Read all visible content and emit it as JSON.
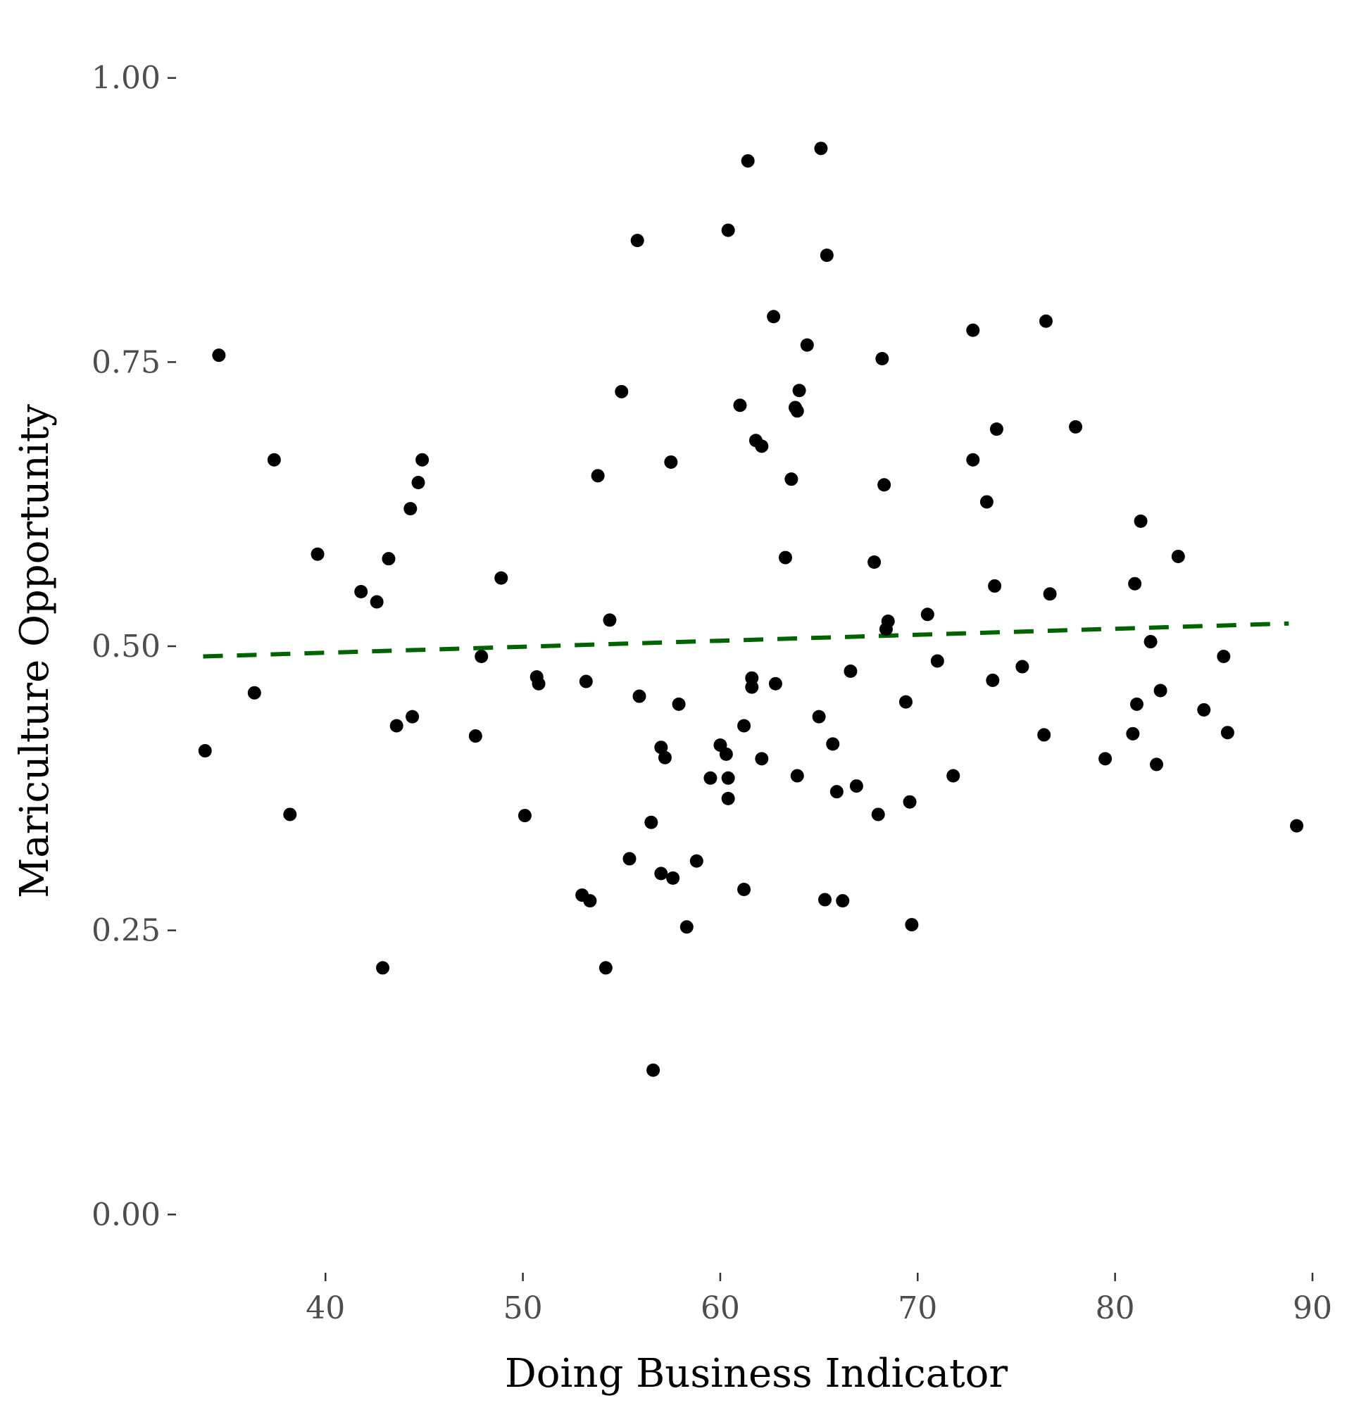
{
  "chart_data": {
    "type": "scatter",
    "title": "",
    "xlabel": "Doing Business Indicator",
    "ylabel": "Mariculture Opportunity",
    "xlim": [
      32.5,
      91.0
    ],
    "ylim": [
      -0.05,
      1.05
    ],
    "x_ticks": [
      40,
      50,
      60,
      70,
      80,
      90
    ],
    "x_tick_labels": [
      "40",
      "50",
      "60",
      "70",
      "80",
      "90"
    ],
    "y_ticks": [
      0.0,
      0.25,
      0.5,
      0.75,
      1.0
    ],
    "y_tick_labels": [
      "0.00",
      "0.25",
      "0.50",
      "0.75",
      "1.00"
    ],
    "grid": false,
    "point_color": "#000000",
    "trend_color": "#006400",
    "series": [
      {
        "type": "scatter",
        "points": [
          [
            33.9,
            0.408
          ],
          [
            34.6,
            0.756
          ],
          [
            36.4,
            0.459
          ],
          [
            37.4,
            0.664
          ],
          [
            38.2,
            0.352
          ],
          [
            39.6,
            0.581
          ],
          [
            41.8,
            0.548
          ],
          [
            42.6,
            0.539
          ],
          [
            42.9,
            0.217
          ],
          [
            43.2,
            0.577
          ],
          [
            43.6,
            0.43
          ],
          [
            44.3,
            0.621
          ],
          [
            44.4,
            0.438
          ],
          [
            44.7,
            0.644
          ],
          [
            44.9,
            0.664
          ],
          [
            47.6,
            0.421
          ],
          [
            47.9,
            0.491
          ],
          [
            48.9,
            0.56
          ],
          [
            50.1,
            0.351
          ],
          [
            50.7,
            0.473
          ],
          [
            50.8,
            0.467
          ],
          [
            53.0,
            0.281
          ],
          [
            53.2,
            0.469
          ],
          [
            53.4,
            0.276
          ],
          [
            53.8,
            0.65
          ],
          [
            54.2,
            0.217
          ],
          [
            54.4,
            0.523
          ],
          [
            55.0,
            0.724
          ],
          [
            55.4,
            0.313
          ],
          [
            55.8,
            0.857
          ],
          [
            55.9,
            0.456
          ],
          [
            56.5,
            0.345
          ],
          [
            56.6,
            0.127
          ],
          [
            57.0,
            0.3
          ],
          [
            57.0,
            0.411
          ],
          [
            57.2,
            0.402
          ],
          [
            57.5,
            0.662
          ],
          [
            57.6,
            0.296
          ],
          [
            57.9,
            0.449
          ],
          [
            58.3,
            0.253
          ],
          [
            58.8,
            0.311
          ],
          [
            59.5,
            0.384
          ],
          [
            60.0,
            0.413
          ],
          [
            60.3,
            0.405
          ],
          [
            60.4,
            0.866
          ],
          [
            60.4,
            0.384
          ],
          [
            60.4,
            0.366
          ],
          [
            61.0,
            0.712
          ],
          [
            61.2,
            0.43
          ],
          [
            61.2,
            0.286
          ],
          [
            61.4,
            0.927
          ],
          [
            61.6,
            0.472
          ],
          [
            61.6,
            0.464
          ],
          [
            61.8,
            0.681
          ],
          [
            62.1,
            0.676
          ],
          [
            62.1,
            0.401
          ],
          [
            62.7,
            0.79
          ],
          [
            62.8,
            0.467
          ],
          [
            63.3,
            0.578
          ],
          [
            63.6,
            0.647
          ],
          [
            63.8,
            0.71
          ],
          [
            63.9,
            0.386
          ],
          [
            63.9,
            0.707
          ],
          [
            64.0,
            0.725
          ],
          [
            64.4,
            0.765
          ],
          [
            65.0,
            0.438
          ],
          [
            65.1,
            0.938
          ],
          [
            65.3,
            0.277
          ],
          [
            65.4,
            0.844
          ],
          [
            65.7,
            0.414
          ],
          [
            65.9,
            0.372
          ],
          [
            66.2,
            0.276
          ],
          [
            66.6,
            0.478
          ],
          [
            66.9,
            0.377
          ],
          [
            67.8,
            0.574
          ],
          [
            68.0,
            0.352
          ],
          [
            68.2,
            0.753
          ],
          [
            68.3,
            0.642
          ],
          [
            68.4,
            0.515
          ],
          [
            68.5,
            0.522
          ],
          [
            69.4,
            0.451
          ],
          [
            69.6,
            0.363
          ],
          [
            69.7,
            0.255
          ],
          [
            70.5,
            0.528
          ],
          [
            71.0,
            0.487
          ],
          [
            71.8,
            0.386
          ],
          [
            72.8,
            0.778
          ],
          [
            72.8,
            0.664
          ],
          [
            73.5,
            0.627
          ],
          [
            73.8,
            0.47
          ],
          [
            73.9,
            0.553
          ],
          [
            74.0,
            0.691
          ],
          [
            75.3,
            0.482
          ],
          [
            76.4,
            0.422
          ],
          [
            76.5,
            0.786
          ],
          [
            76.7,
            0.546
          ],
          [
            78.0,
            0.693
          ],
          [
            79.5,
            0.401
          ],
          [
            80.9,
            0.423
          ],
          [
            81.0,
            0.555
          ],
          [
            81.1,
            0.449
          ],
          [
            81.3,
            0.61
          ],
          [
            81.8,
            0.504
          ],
          [
            82.1,
            0.396
          ],
          [
            82.3,
            0.461
          ],
          [
            83.2,
            0.579
          ],
          [
            84.5,
            0.444
          ],
          [
            85.5,
            0.491
          ],
          [
            85.7,
            0.424
          ],
          [
            89.2,
            0.342
          ]
        ]
      },
      {
        "type": "line",
        "style": "dashed",
        "x": [
          33.8,
          88.8
        ],
        "y": [
          0.491,
          0.52
        ]
      }
    ]
  }
}
